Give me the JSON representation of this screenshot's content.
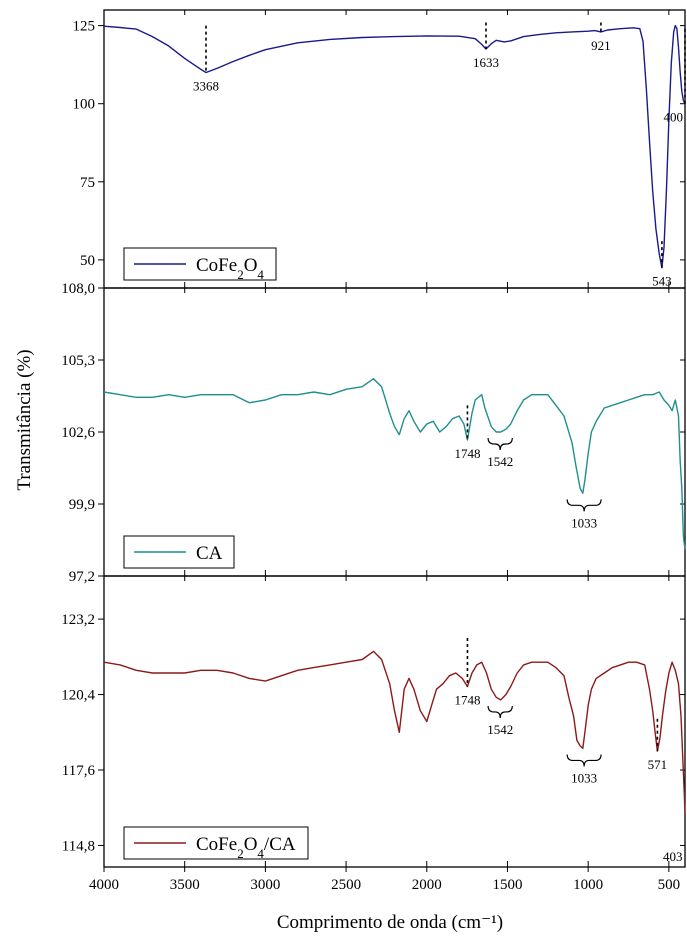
{
  "chart_data": {
    "type": "line",
    "figure": {
      "xlabel": "Comprimento de onda (cm⁻¹)",
      "ylabel": "Transmitância (%)",
      "xlim": [
        4000,
        400
      ],
      "x_ticks": [
        "4000",
        "3500",
        "3000",
        "2500",
        "2000",
        "1500",
        "1000",
        "500"
      ],
      "x_tick_values": [
        4000,
        3500,
        3000,
        2500,
        2000,
        1500,
        1000,
        500
      ],
      "grid": false
    },
    "panels": [
      {
        "series_name": "CoFe2O4",
        "legend_base": "CoFe",
        "legend_sub1": "2",
        "legend_mid": "O",
        "legend_sub2": "4",
        "legend_tail": "",
        "color": "#1a1a8a",
        "ylim": [
          41,
          130
        ],
        "y_ticks": [
          "125",
          "100",
          "75",
          "50"
        ],
        "y_tick_values": [
          125,
          100,
          75,
          50
        ],
        "points": [
          [
            4000,
            124.8
          ],
          [
            3900,
            124.4
          ],
          [
            3800,
            123.9
          ],
          [
            3700,
            121.5
          ],
          [
            3600,
            118.5
          ],
          [
            3500,
            114.5
          ],
          [
            3400,
            111
          ],
          [
            3368,
            110
          ],
          [
            3300,
            111.3
          ],
          [
            3200,
            113.5
          ],
          [
            3100,
            115.5
          ],
          [
            3000,
            117.3
          ],
          [
            2800,
            119.5
          ],
          [
            2600,
            120.6
          ],
          [
            2400,
            121.2
          ],
          [
            2200,
            121.5
          ],
          [
            2000,
            121.7
          ],
          [
            1800,
            121.6
          ],
          [
            1700,
            120.8
          ],
          [
            1660,
            119
          ],
          [
            1633,
            117.5
          ],
          [
            1600,
            119.2
          ],
          [
            1570,
            120.3
          ],
          [
            1520,
            119.8
          ],
          [
            1480,
            120.1
          ],
          [
            1400,
            121.5
          ],
          [
            1300,
            122.2
          ],
          [
            1200,
            122.7
          ],
          [
            1100,
            123
          ],
          [
            1000,
            123.2
          ],
          [
            960,
            123.4
          ],
          [
            921,
            123
          ],
          [
            880,
            123.6
          ],
          [
            800,
            124
          ],
          [
            720,
            124.3
          ],
          [
            680,
            124
          ],
          [
            660,
            120
          ],
          [
            640,
            105
          ],
          [
            620,
            88
          ],
          [
            600,
            72
          ],
          [
            580,
            60
          ],
          [
            560,
            52
          ],
          [
            543,
            47.5
          ],
          [
            530,
            54
          ],
          [
            515,
            72
          ],
          [
            500,
            95
          ],
          [
            485,
            113
          ],
          [
            470,
            123
          ],
          [
            460,
            125
          ],
          [
            450,
            124
          ],
          [
            440,
            118
          ],
          [
            430,
            110
          ],
          [
            420,
            104
          ],
          [
            410,
            101
          ],
          [
            400,
            100
          ]
        ],
        "annotations": [
          {
            "label": "3368",
            "x": 3368,
            "y_tip": 110,
            "y_top": 125
          },
          {
            "label": "1633",
            "x": 1633,
            "y_tip": 117.5,
            "y_top": 126
          },
          {
            "label": "921",
            "x": 921,
            "y_tip": 123,
            "y_top": 126
          },
          {
            "label": "400",
            "x": 400,
            "y_tip": 100,
            "y_top": 124
          },
          {
            "label": "543",
            "x": 543,
            "y_tip": 47.5,
            "y_top": 56
          }
        ]
      },
      {
        "series_name": "CA",
        "legend_base": "CA",
        "legend_sub1": "",
        "legend_mid": "",
        "legend_sub2": "",
        "legend_tail": "",
        "color": "#1f8f8f",
        "ylim": [
          97.2,
          108.0
        ],
        "y_ticks": [
          "108,0",
          "105,3",
          "102,6",
          "99,9",
          "97,2"
        ],
        "y_tick_values": [
          108.0,
          105.3,
          102.6,
          99.9,
          97.2
        ],
        "points": [
          [
            4000,
            104.1
          ],
          [
            3900,
            104.0
          ],
          [
            3800,
            103.9
          ],
          [
            3700,
            103.9
          ],
          [
            3600,
            104.0
          ],
          [
            3500,
            103.9
          ],
          [
            3400,
            104.0
          ],
          [
            3300,
            104.0
          ],
          [
            3200,
            104.0
          ],
          [
            3100,
            103.7
          ],
          [
            3000,
            103.8
          ],
          [
            2900,
            104.0
          ],
          [
            2800,
            104.0
          ],
          [
            2700,
            104.1
          ],
          [
            2600,
            104.0
          ],
          [
            2500,
            104.2
          ],
          [
            2400,
            104.3
          ],
          [
            2330,
            104.6
          ],
          [
            2280,
            104.3
          ],
          [
            2230,
            103.3
          ],
          [
            2200,
            102.8
          ],
          [
            2170,
            102.5
          ],
          [
            2140,
            103.1
          ],
          [
            2110,
            103.4
          ],
          [
            2080,
            103.0
          ],
          [
            2040,
            102.6
          ],
          [
            2000,
            102.9
          ],
          [
            1960,
            103.0
          ],
          [
            1920,
            102.6
          ],
          [
            1880,
            102.8
          ],
          [
            1840,
            103.1
          ],
          [
            1800,
            103.2
          ],
          [
            1770,
            102.9
          ],
          [
            1748,
            102.3
          ],
          [
            1720,
            103.3
          ],
          [
            1700,
            103.8
          ],
          [
            1660,
            104.0
          ],
          [
            1640,
            103.5
          ],
          [
            1600,
            102.8
          ],
          [
            1570,
            102.6
          ],
          [
            1542,
            102.6
          ],
          [
            1510,
            102.7
          ],
          [
            1480,
            102.9
          ],
          [
            1440,
            103.4
          ],
          [
            1400,
            103.8
          ],
          [
            1350,
            104.0
          ],
          [
            1300,
            104.0
          ],
          [
            1250,
            104.0
          ],
          [
            1200,
            103.6
          ],
          [
            1150,
            103.2
          ],
          [
            1100,
            102.2
          ],
          [
            1075,
            101.3
          ],
          [
            1050,
            100.5
          ],
          [
            1033,
            100.3
          ],
          [
            1020,
            100.8
          ],
          [
            1000,
            101.8
          ],
          [
            980,
            102.6
          ],
          [
            950,
            103.0
          ],
          [
            900,
            103.5
          ],
          [
            850,
            103.6
          ],
          [
            800,
            103.7
          ],
          [
            750,
            103.8
          ],
          [
            700,
            103.9
          ],
          [
            650,
            104.0
          ],
          [
            600,
            104.0
          ],
          [
            560,
            104.1
          ],
          [
            530,
            103.8
          ],
          [
            500,
            103.6
          ],
          [
            480,
            103.4
          ],
          [
            460,
            103.8
          ],
          [
            440,
            103.2
          ],
          [
            430,
            101.5
          ],
          [
            420,
            100.5
          ],
          [
            410,
            98.7
          ],
          [
            400,
            98.2
          ]
        ],
        "annotations": [
          {
            "label": "1748",
            "x": 1748,
            "y_tip": 102.3,
            "y_top": 103.6
          },
          {
            "label": "1542",
            "x": 1542,
            "y_tip": 102.6,
            "brace": true,
            "brace_x1": 1620,
            "brace_x2": 1470
          },
          {
            "label": "1033",
            "x": 1033,
            "y_tip": 100.3,
            "brace": true,
            "brace_x1": 1130,
            "brace_x2": 920
          }
        ]
      },
      {
        "series_name": "CoFe2O4/CA",
        "legend_base": "CoFe",
        "legend_sub1": "2",
        "legend_mid": "O",
        "legend_sub2": "4",
        "legend_tail": "/CA",
        "color": "#8b1a1a",
        "ylim": [
          114.0,
          124.8
        ],
        "y_ticks": [
          "123,2",
          "120,4",
          "117,6",
          "114,8"
        ],
        "y_tick_values": [
          123.2,
          120.4,
          117.6,
          114.8
        ],
        "points": [
          [
            4000,
            121.6
          ],
          [
            3900,
            121.5
          ],
          [
            3800,
            121.3
          ],
          [
            3700,
            121.2
          ],
          [
            3600,
            121.2
          ],
          [
            3500,
            121.2
          ],
          [
            3400,
            121.3
          ],
          [
            3300,
            121.3
          ],
          [
            3200,
            121.2
          ],
          [
            3100,
            121.0
          ],
          [
            3000,
            120.9
          ],
          [
            2900,
            121.1
          ],
          [
            2800,
            121.3
          ],
          [
            2700,
            121.4
          ],
          [
            2600,
            121.5
          ],
          [
            2500,
            121.6
          ],
          [
            2400,
            121.7
          ],
          [
            2330,
            122.0
          ],
          [
            2280,
            121.7
          ],
          [
            2230,
            120.8
          ],
          [
            2200,
            119.8
          ],
          [
            2170,
            119.0
          ],
          [
            2140,
            120.6
          ],
          [
            2110,
            121.0
          ],
          [
            2080,
            120.6
          ],
          [
            2040,
            119.8
          ],
          [
            2000,
            119.4
          ],
          [
            1970,
            120.0
          ],
          [
            1940,
            120.6
          ],
          [
            1900,
            120.8
          ],
          [
            1860,
            121.1
          ],
          [
            1820,
            121.2
          ],
          [
            1780,
            121.0
          ],
          [
            1748,
            120.7
          ],
          [
            1720,
            121.2
          ],
          [
            1690,
            121.5
          ],
          [
            1660,
            121.6
          ],
          [
            1630,
            121.2
          ],
          [
            1600,
            120.6
          ],
          [
            1570,
            120.3
          ],
          [
            1542,
            120.2
          ],
          [
            1510,
            120.4
          ],
          [
            1480,
            120.7
          ],
          [
            1440,
            121.2
          ],
          [
            1400,
            121.5
          ],
          [
            1350,
            121.6
          ],
          [
            1300,
            121.6
          ],
          [
            1250,
            121.6
          ],
          [
            1200,
            121.4
          ],
          [
            1150,
            121.1
          ],
          [
            1120,
            120.3
          ],
          [
            1090,
            119.6
          ],
          [
            1070,
            118.7
          ],
          [
            1050,
            118.5
          ],
          [
            1033,
            118.4
          ],
          [
            1020,
            119.0
          ],
          [
            1000,
            120.0
          ],
          [
            980,
            120.6
          ],
          [
            950,
            121.0
          ],
          [
            900,
            121.2
          ],
          [
            850,
            121.4
          ],
          [
            800,
            121.5
          ],
          [
            750,
            121.6
          ],
          [
            700,
            121.6
          ],
          [
            650,
            121.5
          ],
          [
            620,
            120.6
          ],
          [
            600,
            119.8
          ],
          [
            585,
            119.0
          ],
          [
            571,
            118.3
          ],
          [
            555,
            118.8
          ],
          [
            540,
            119.6
          ],
          [
            520,
            120.5
          ],
          [
            500,
            121.2
          ],
          [
            480,
            121.6
          ],
          [
            460,
            121.3
          ],
          [
            440,
            120.8
          ],
          [
            425,
            119.6
          ],
          [
            415,
            118.2
          ],
          [
            405,
            116.8
          ],
          [
            400,
            116.0
          ]
        ],
        "annotations": [
          {
            "label": "1748",
            "x": 1748,
            "y_tip": 120.7,
            "y_top": 122.5
          },
          {
            "label": "1542",
            "x": 1542,
            "y_tip": 120.2,
            "brace": true,
            "brace_x1": 1620,
            "brace_x2": 1470
          },
          {
            "label": "1033",
            "x": 1033,
            "y_tip": 118.4,
            "brace": true,
            "brace_x1": 1130,
            "brace_x2": 920
          },
          {
            "label": "571",
            "x": 571,
            "y_tip": 118.3,
            "y_top": 119.5
          },
          {
            "label": "403",
            "x": 403,
            "y_tip": 116.0,
            "y_top": 116.0
          }
        ]
      }
    ]
  }
}
